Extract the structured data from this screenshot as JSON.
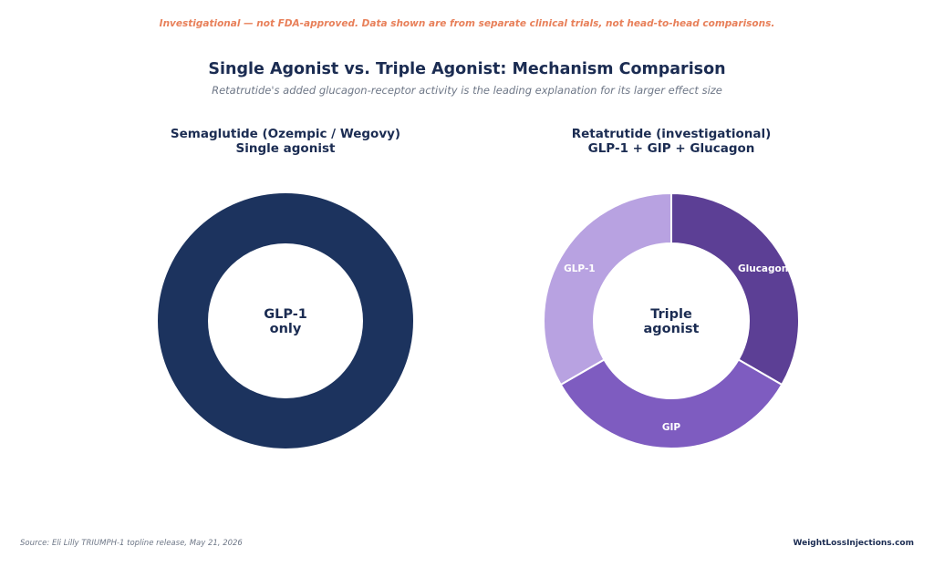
{
  "disclaimer": "Investigational — not FDA-approved. Data shown are from separate clinical trials, not head-to-head comparisons.",
  "title": "Single Agonist vs. Triple Agonist: Mechanism Comparison",
  "subtitle": "Retatrutide's added glucagon-receptor activity is the leading explanation for its larger effect size",
  "footer": {
    "source": "Source: Eli Lilly TRIUMPH-1 topline release, May 21, 2026",
    "brand": "WeightLossInjections.com"
  },
  "chart_data": [
    {
      "type": "pie",
      "title_line1": "Semaglutide (Ozempic / Wegovy)",
      "title_line2": "Single agonist",
      "center_label": [
        "GLP-1",
        "only"
      ],
      "slices": [
        {
          "label": "",
          "value": 1,
          "color": "#1c335e"
        }
      ]
    },
    {
      "type": "pie",
      "title_line1": "Retatrutide (investigational)",
      "title_line2": "GLP-1 + GIP + Glucagon",
      "center_label": [
        "Triple",
        "agonist"
      ],
      "slices": [
        {
          "label": "Glucagon",
          "value": 1,
          "color": "#5c3f95"
        },
        {
          "label": "GIP",
          "value": 1,
          "color": "#7e5cc0"
        },
        {
          "label": "GLP-1",
          "value": 1,
          "color": "#b8a2e1"
        }
      ]
    }
  ]
}
